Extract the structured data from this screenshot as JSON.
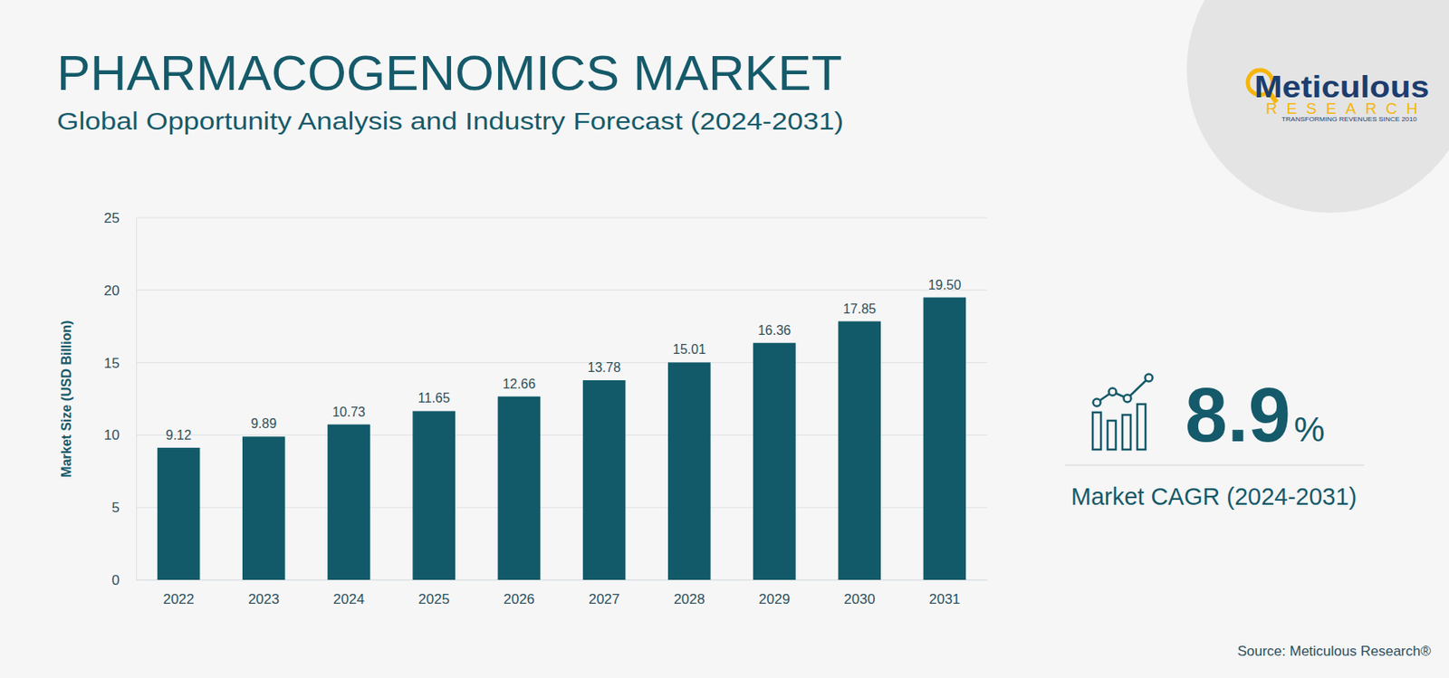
{
  "chart_data": {
    "type": "bar",
    "title": "PHARMACOGENOMICS MARKET",
    "subtitle": "Global Opportunity Analysis and Industry Forecast (2024-2031)",
    "y_label": "Market Size (USD Billion)",
    "categories": [
      "2022",
      "2023",
      "2024",
      "2025",
      "2026",
      "2027",
      "2028",
      "2029",
      "2030",
      "2031"
    ],
    "values": [
      9.12,
      9.89,
      10.73,
      11.65,
      12.66,
      13.78,
      15.01,
      16.36,
      17.85,
      19.5
    ],
    "value_labels": [
      "9.12",
      "9.89",
      "10.73",
      "11.65",
      "12.66",
      "13.78",
      "15.01",
      "16.36",
      "17.85",
      "19.50"
    ],
    "color": "#125a69",
    "ylim": [
      0,
      25
    ],
    "yticks": [
      0,
      5,
      10,
      15,
      20,
      25
    ],
    "grid": true,
    "data_labels": true,
    "cagr": "8.9%",
    "cagr_label": "Market CAGR (2024-2031)",
    "source": "Source: Meticulous Research®",
    "logo": {
      "name": "Meticulous",
      "subname": "RESEARCH",
      "tagline": "TRANSFORMING REVENUES SINCE 2010"
    }
  }
}
